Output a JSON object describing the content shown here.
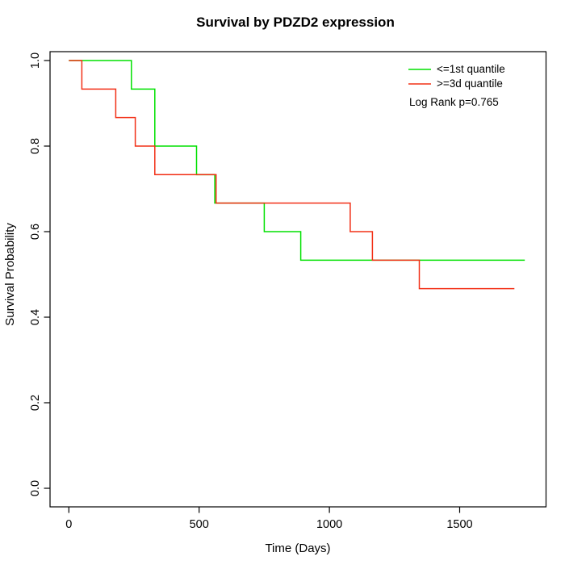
{
  "chart_data": {
    "type": "line",
    "subtype": "kaplan-meier-step",
    "title": "Survival by PDZD2 expression",
    "xlabel": "Time (Days)",
    "ylabel": "Survival Probability",
    "xlim": [
      0,
      1750
    ],
    "ylim": [
      0.0,
      1.0
    ],
    "xticks": [
      0,
      500,
      1000,
      1500
    ],
    "yticks": [
      "0.0",
      "0.2",
      "0.4",
      "0.6",
      "0.8",
      "1.0"
    ],
    "grid": false,
    "legend_position": "top-right",
    "annotation": "Log Rank p=0.765",
    "background": "#ffffff",
    "series": [
      {
        "name": "<=1st quantile",
        "color": "#00e100",
        "steps": [
          [
            0,
            1.0
          ],
          [
            240,
            0.9333
          ],
          [
            330,
            0.8
          ],
          [
            490,
            0.7333
          ],
          [
            560,
            0.6667
          ],
          [
            750,
            0.6
          ],
          [
            890,
            0.5333
          ]
        ],
        "end": 1750
      },
      {
        "name": ">=3d quantile",
        "color": "#f23017",
        "steps": [
          [
            0,
            1.0
          ],
          [
            50,
            0.9333
          ],
          [
            180,
            0.8667
          ],
          [
            255,
            0.8
          ],
          [
            330,
            0.7333
          ],
          [
            565,
            0.6667
          ],
          [
            1080,
            0.6
          ],
          [
            1165,
            0.5333
          ],
          [
            1345,
            0.4667
          ]
        ],
        "end": 1710
      }
    ]
  }
}
